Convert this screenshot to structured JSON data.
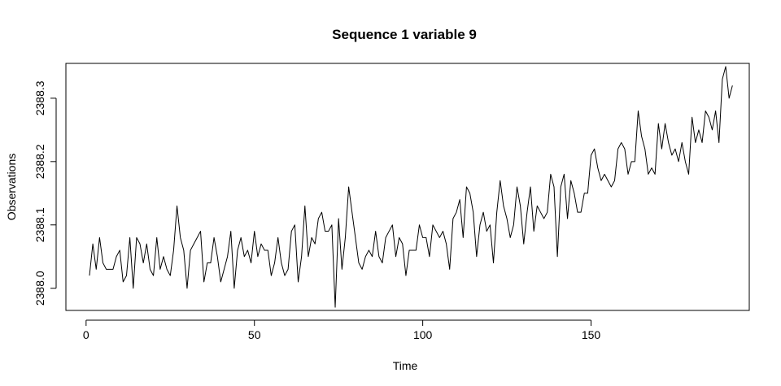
{
  "chart_data": {
    "type": "line",
    "title": "Sequence  1  variable  9",
    "xlabel": "Time",
    "ylabel": "Observations",
    "xlim": [
      -6,
      197
    ],
    "ylim": [
      2387.965,
      2388.355
    ],
    "x_ticks": [
      0,
      50,
      100,
      150
    ],
    "x_tick_labels": [
      "0",
      "50",
      "100",
      "150"
    ],
    "y_ticks": [
      2388.0,
      2388.1,
      2388.2,
      2388.3
    ],
    "y_tick_labels": [
      "2388.0",
      "2388.1",
      "2388.2",
      "2388.3"
    ],
    "grid": false,
    "legend": "none",
    "line_color": "#000000",
    "series": [
      {
        "x": [
          1,
          2,
          3,
          4,
          5,
          6,
          7,
          8,
          9,
          10,
          11,
          12,
          13,
          14,
          15,
          16,
          17,
          18,
          19,
          20,
          21,
          22,
          23,
          24,
          25,
          26,
          27,
          28,
          29,
          30,
          31,
          32,
          33,
          34,
          35,
          36,
          37,
          38,
          39,
          40,
          41,
          42,
          43,
          44,
          45,
          46,
          47,
          48,
          49,
          50,
          51,
          52,
          53,
          54,
          55,
          56,
          57,
          58,
          59,
          60,
          61,
          62,
          63,
          64,
          65,
          66,
          67,
          68,
          69,
          70,
          71,
          72,
          73,
          74,
          75,
          76,
          77,
          78,
          79,
          80,
          81,
          82,
          83,
          84,
          85,
          86,
          87,
          88,
          89,
          90,
          91,
          92,
          93,
          94,
          95,
          96,
          97,
          98,
          99,
          100,
          101,
          102,
          103,
          104,
          105,
          106,
          107,
          108,
          109,
          110,
          111,
          112,
          113,
          114,
          115,
          116,
          117,
          118,
          119,
          120,
          121,
          122,
          123,
          124,
          125,
          126,
          127,
          128,
          129,
          130,
          131,
          132,
          133,
          134,
          135,
          136,
          137,
          138,
          139,
          140,
          141,
          142,
          143,
          144,
          145,
          146,
          147,
          148,
          149,
          150,
          151,
          152,
          153,
          154,
          155,
          156,
          157,
          158,
          159,
          160,
          161,
          162,
          163,
          164,
          165,
          166,
          167,
          168,
          169,
          170,
          171,
          172,
          173,
          174,
          175,
          176,
          177,
          178,
          179,
          180,
          181,
          182,
          183,
          184,
          185,
          186,
          187,
          188,
          189,
          190,
          191,
          192
        ],
        "values": [
          2388.02,
          2388.07,
          2388.03,
          2388.08,
          2388.04,
          2388.03,
          2388.03,
          2388.03,
          2388.05,
          2388.06,
          2388.01,
          2388.02,
          2388.08,
          2388.0,
          2388.08,
          2388.07,
          2388.04,
          2388.07,
          2388.03,
          2388.02,
          2388.08,
          2388.03,
          2388.05,
          2388.03,
          2388.02,
          2388.06,
          2388.13,
          2388.08,
          2388.06,
          2388.0,
          2388.06,
          2388.07,
          2388.08,
          2388.09,
          2388.01,
          2388.04,
          2388.04,
          2388.08,
          2388.05,
          2388.01,
          2388.03,
          2388.05,
          2388.09,
          2388.0,
          2388.06,
          2388.08,
          2388.05,
          2388.06,
          2388.04,
          2388.09,
          2388.05,
          2388.07,
          2388.06,
          2388.06,
          2388.02,
          2388.04,
          2388.08,
          2388.04,
          2388.02,
          2388.03,
          2388.09,
          2388.1,
          2388.01,
          2388.05,
          2388.13,
          2388.05,
          2388.08,
          2388.07,
          2388.11,
          2388.12,
          2388.09,
          2388.09,
          2388.1,
          2387.97,
          2388.11,
          2388.03,
          2388.08,
          2388.16,
          2388.12,
          2388.08,
          2388.04,
          2388.03,
          2388.05,
          2388.06,
          2388.05,
          2388.09,
          2388.05,
          2388.04,
          2388.08,
          2388.09,
          2388.1,
          2388.05,
          2388.08,
          2388.07,
          2388.02,
          2388.06,
          2388.06,
          2388.06,
          2388.1,
          2388.08,
          2388.08,
          2388.05,
          2388.1,
          2388.09,
          2388.08,
          2388.09,
          2388.07,
          2388.03,
          2388.11,
          2388.12,
          2388.14,
          2388.08,
          2388.16,
          2388.15,
          2388.12,
          2388.05,
          2388.1,
          2388.12,
          2388.09,
          2388.1,
          2388.04,
          2388.12,
          2388.17,
          2388.13,
          2388.11,
          2388.08,
          2388.1,
          2388.16,
          2388.13,
          2388.07,
          2388.12,
          2388.16,
          2388.09,
          2388.13,
          2388.12,
          2388.11,
          2388.12,
          2388.18,
          2388.16,
          2388.05,
          2388.16,
          2388.18,
          2388.11,
          2388.17,
          2388.15,
          2388.12,
          2388.12,
          2388.15,
          2388.15,
          2388.21,
          2388.22,
          2388.19,
          2388.17,
          2388.18,
          2388.17,
          2388.16,
          2388.17,
          2388.22,
          2388.23,
          2388.22,
          2388.18,
          2388.2,
          2388.2,
          2388.28,
          2388.24,
          2388.22,
          2388.18,
          2388.19,
          2388.18,
          2388.26,
          2388.22,
          2388.26,
          2388.23,
          2388.21,
          2388.22,
          2388.2,
          2388.23,
          2388.2,
          2388.18,
          2388.27,
          2388.23,
          2388.25,
          2388.23,
          2388.28,
          2388.27,
          2388.25,
          2388.28,
          2388.23,
          2388.33,
          2388.35,
          2388.3,
          2388.32
        ]
      }
    ]
  }
}
